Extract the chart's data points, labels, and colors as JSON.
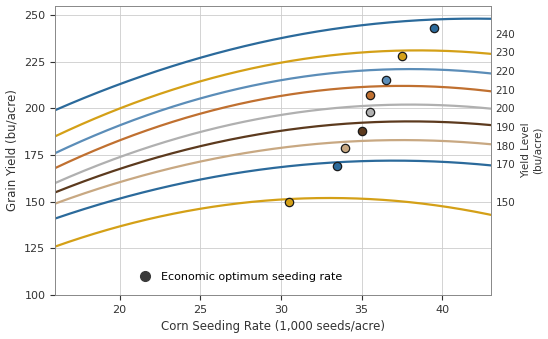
{
  "xlabel": "Corn Seeding Rate (1,000 seeds/acre)",
  "ylabel": "Grain Yield (bu/acre)",
  "right_axis_label": "Yield Level\n(bu/acre)",
  "ylim": [
    100,
    255
  ],
  "xlim": [
    16,
    43
  ],
  "xticks": [
    20,
    25,
    30,
    35,
    40
  ],
  "yticks": [
    100,
    125,
    150,
    175,
    200,
    225,
    250
  ],
  "right_yticks": [
    150,
    170,
    180,
    190,
    200,
    210,
    220,
    230,
    240
  ],
  "curves_def": [
    {
      "color": "#2B6A9B",
      "y0": 199,
      "ymax": 248,
      "xopt": 42.0,
      "opt_x": 39.5,
      "opt_y": 243
    },
    {
      "color": "#D4A017",
      "y0": 185,
      "ymax": 231,
      "xopt": 38.5,
      "opt_x": 37.5,
      "opt_y": 228
    },
    {
      "color": "#5B8DB8",
      "y0": 176,
      "ymax": 221,
      "xopt": 38.0,
      "opt_x": 36.5,
      "opt_y": 215
    },
    {
      "color": "#C07030",
      "y0": 168,
      "ymax": 212,
      "xopt": 37.5,
      "opt_x": 35.5,
      "opt_y": 207
    },
    {
      "color": "#B0B0B0",
      "y0": 160,
      "ymax": 202,
      "xopt": 38.0,
      "opt_x": 35.5,
      "opt_y": 198
    },
    {
      "color": "#5C3A1E",
      "y0": 155,
      "ymax": 193,
      "xopt": 38.0,
      "opt_x": 35.0,
      "opt_y": 188
    },
    {
      "color": "#C8A882",
      "y0": 149,
      "ymax": 183,
      "xopt": 37.5,
      "opt_x": 34.0,
      "opt_y": 179
    },
    {
      "color": "#2B6A9B",
      "y0": 141,
      "ymax": 172,
      "xopt": 37.0,
      "opt_x": 33.5,
      "opt_y": 169
    },
    {
      "color": "#D4A017",
      "y0": 126,
      "ymax": 152,
      "xopt": 33.0,
      "opt_x": 30.5,
      "opt_y": 150
    }
  ],
  "background_color": "#FFFFFF",
  "grid_color": "#CCCCCC",
  "legend_dot_color": "#3A3A3A",
  "legend_text": "Economic optimum seeding rate"
}
